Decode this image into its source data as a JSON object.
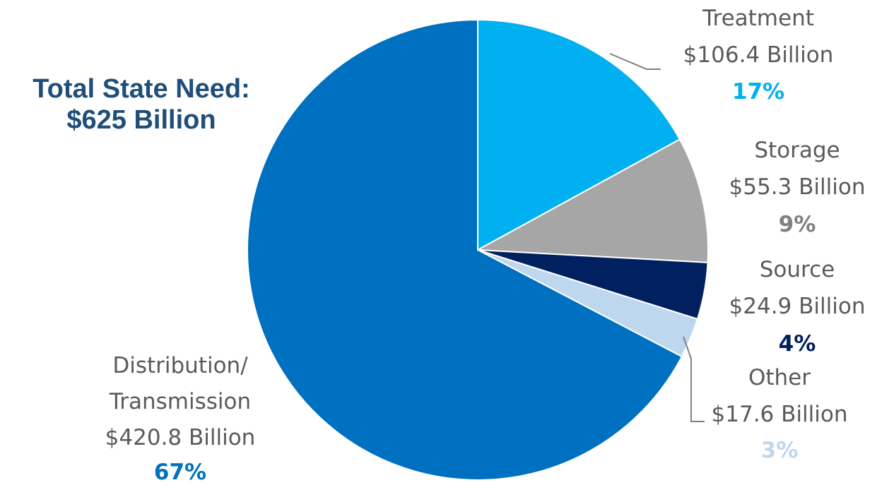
{
  "chart_data": {
    "type": "pie",
    "title": "Total State Need:",
    "subtitle": "$625 Billion",
    "slices": [
      {
        "key": "treatment",
        "name": "Treatment",
        "value": 106.4,
        "value_label": "$106.4 Billion",
        "percent": 17,
        "percent_label": "17%",
        "color": "#00b0f0",
        "pct_color": "#00b0f0"
      },
      {
        "key": "storage",
        "name": "Storage",
        "value": 55.3,
        "value_label": "$55.3 Billion",
        "percent": 9,
        "percent_label": "9%",
        "color": "#a6a6a6",
        "pct_color": "#808080"
      },
      {
        "key": "source",
        "name": "Source",
        "value": 24.9,
        "value_label": "$24.9 Billion",
        "percent": 4,
        "percent_label": "4%",
        "color": "#002060",
        "pct_color": "#002060"
      },
      {
        "key": "other",
        "name": "Other",
        "value": 17.6,
        "value_label": "$17.6 Billion",
        "percent": 3,
        "percent_label": "3%",
        "color": "#bdd7ee",
        "pct_color": "#bdd7ee"
      },
      {
        "key": "distribution",
        "name_lines": [
          "Distribution/",
          "Transmission"
        ],
        "value": 420.8,
        "value_label": "$420.8 Billion",
        "percent": 67,
        "percent_label": "67%",
        "color": "#0070c0",
        "pct_color": "#0070c0"
      }
    ]
  }
}
